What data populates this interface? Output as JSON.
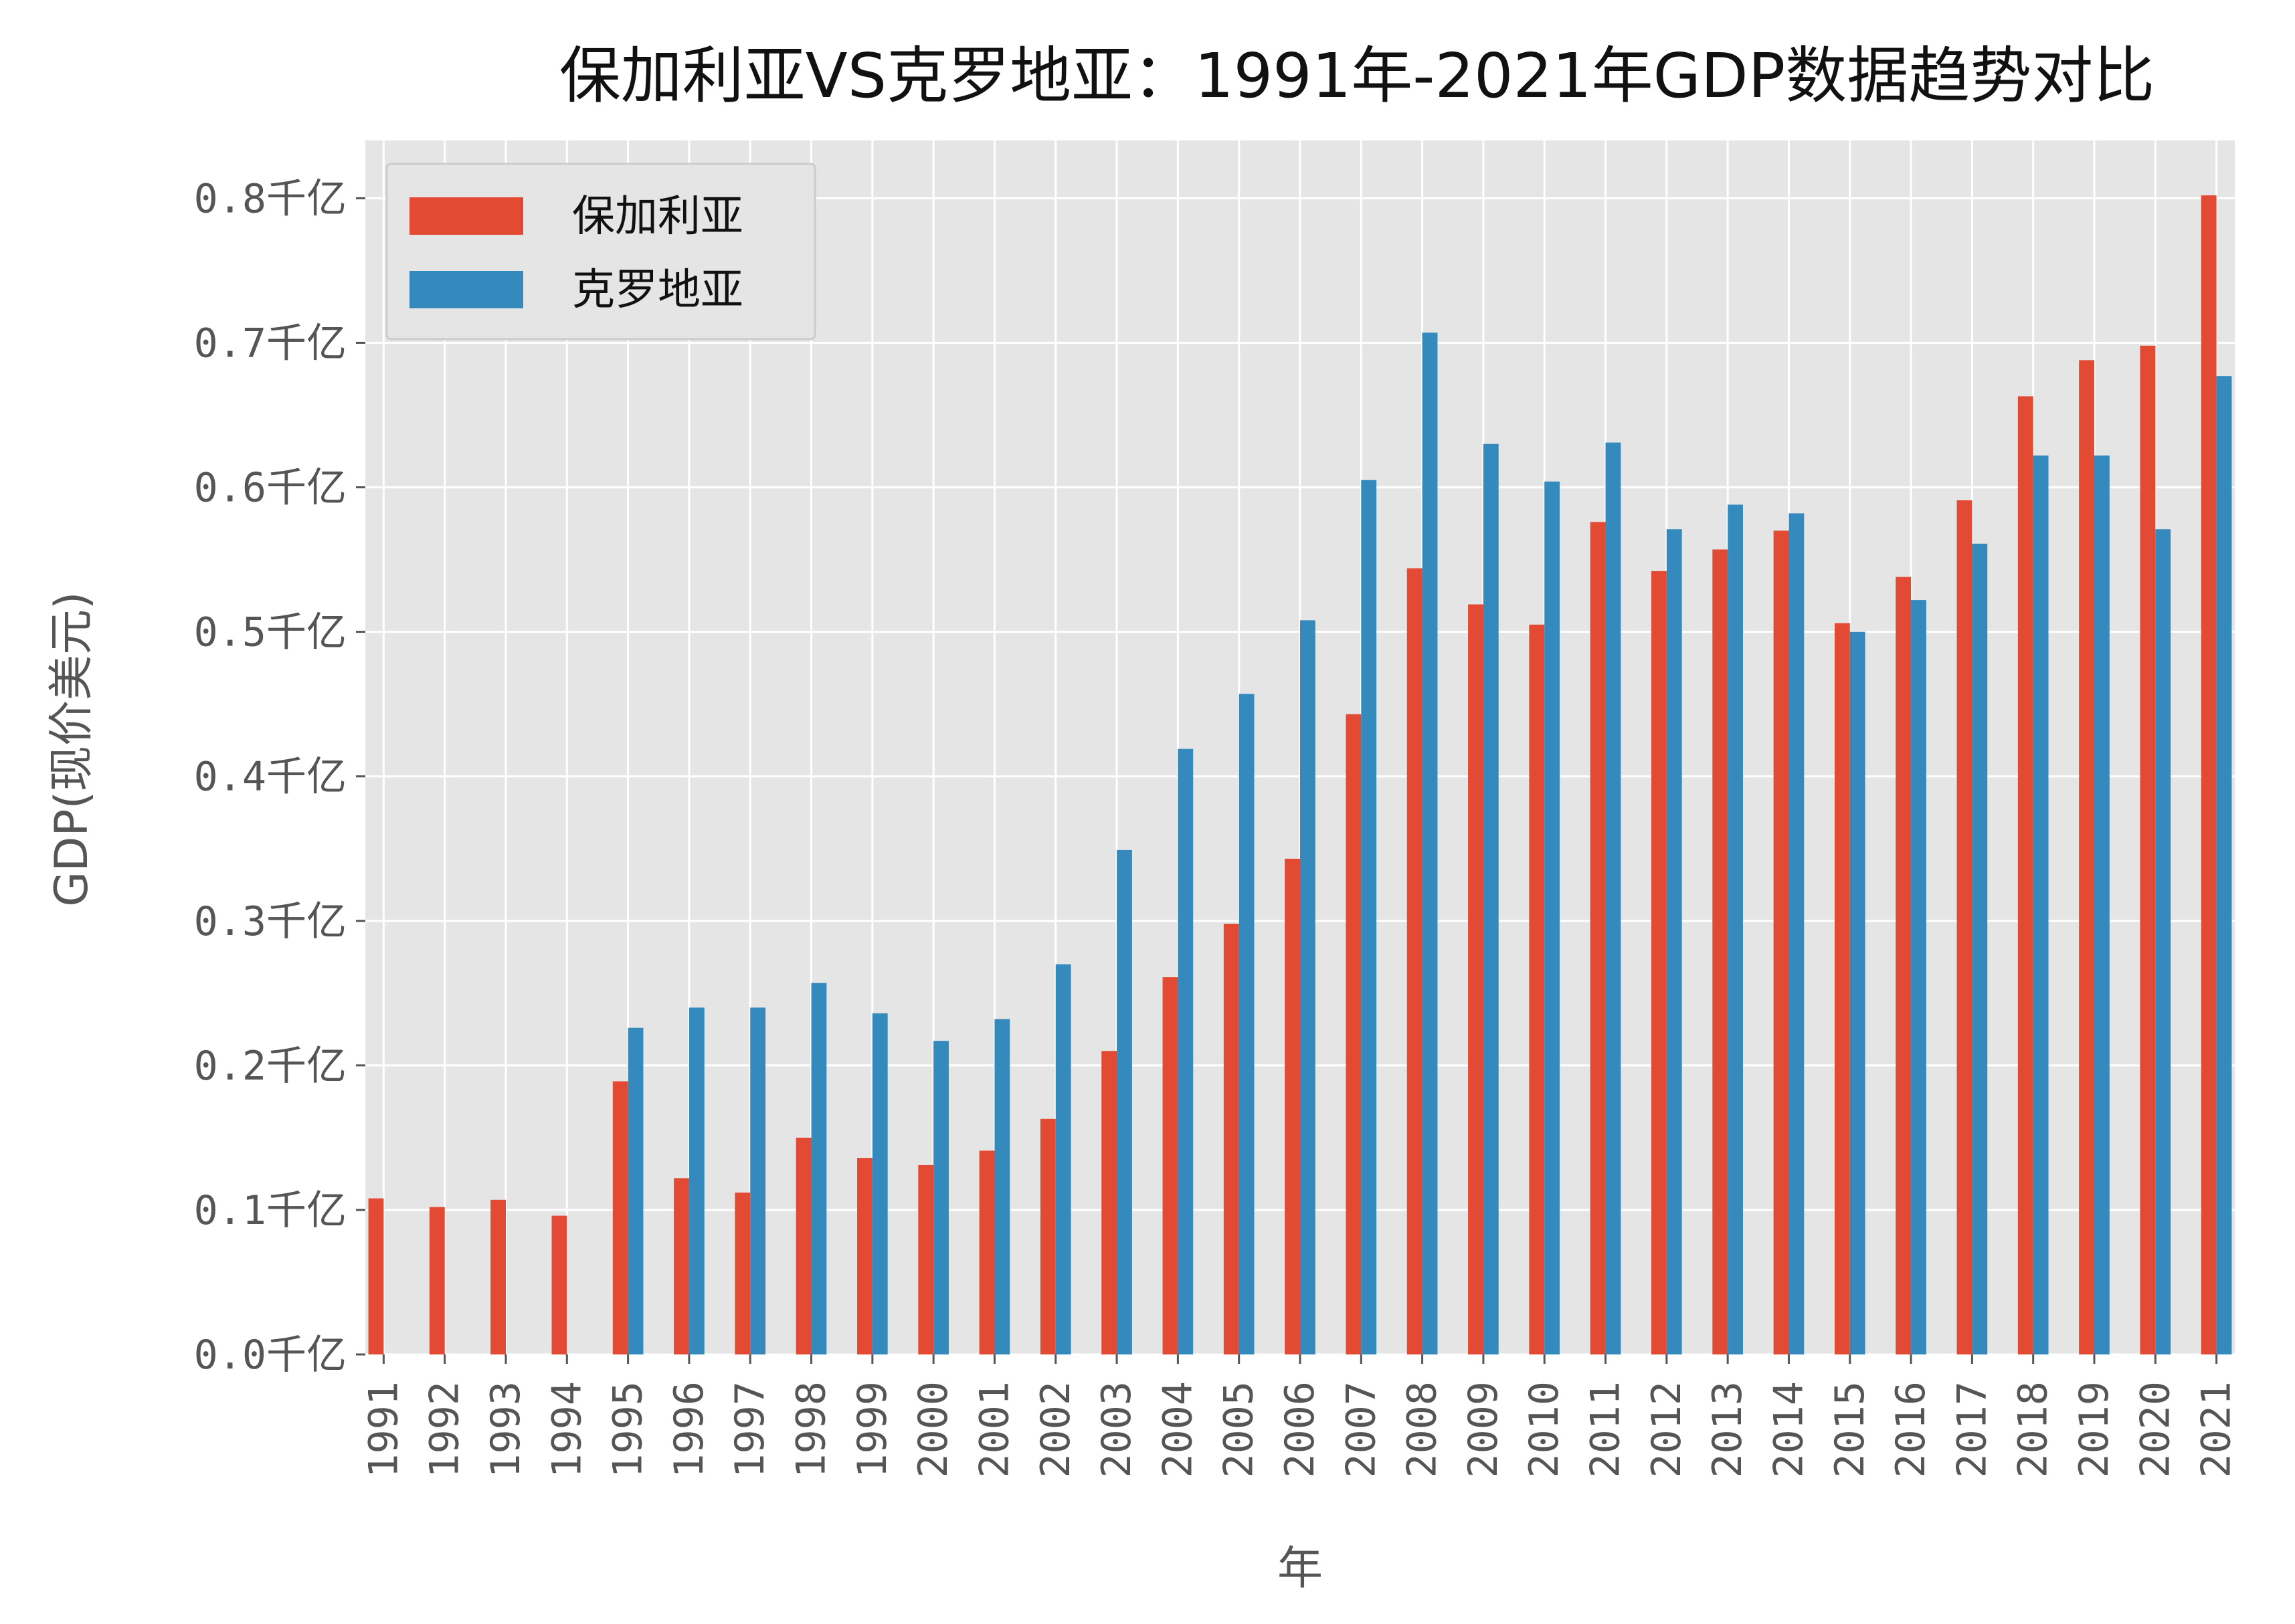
{
  "chart_data": {
    "type": "bar",
    "title": "保加利亚VS克罗地亚：1991年-2021年GDP数据趋势对比",
    "xlabel": "年",
    "ylabel": "GDP(现价美元)",
    "ylim": [
      0,
      0.84
    ],
    "yticks": [
      {
        "value": 0.0,
        "label": "0.0千亿"
      },
      {
        "value": 0.1,
        "label": "0.1千亿"
      },
      {
        "value": 0.2,
        "label": "0.2千亿"
      },
      {
        "value": 0.3,
        "label": "0.3千亿"
      },
      {
        "value": 0.4,
        "label": "0.4千亿"
      },
      {
        "value": 0.5,
        "label": "0.5千亿"
      },
      {
        "value": 0.6,
        "label": "0.6千亿"
      },
      {
        "value": 0.7,
        "label": "0.7千亿"
      },
      {
        "value": 0.8,
        "label": "0.8千亿"
      }
    ],
    "categories": [
      "1991",
      "1992",
      "1993",
      "1994",
      "1995",
      "1996",
      "1997",
      "1998",
      "1999",
      "2000",
      "2001",
      "2002",
      "2003",
      "2004",
      "2005",
      "2006",
      "2007",
      "2008",
      "2009",
      "2010",
      "2011",
      "2012",
      "2013",
      "2014",
      "2015",
      "2016",
      "2017",
      "2018",
      "2019",
      "2020",
      "2021"
    ],
    "grid": true,
    "legend_position": "top-left",
    "series": [
      {
        "name": "保加利亚",
        "color": "#E24A33",
        "values": [
          0.108,
          0.102,
          0.107,
          0.096,
          0.189,
          0.122,
          0.112,
          0.15,
          0.136,
          0.131,
          0.141,
          0.163,
          0.21,
          0.261,
          0.298,
          0.343,
          0.443,
          0.544,
          0.519,
          0.505,
          0.576,
          0.542,
          0.557,
          0.57,
          0.506,
          0.538,
          0.591,
          0.663,
          0.688,
          0.698,
          0.802
        ]
      },
      {
        "name": "克罗地亚",
        "color": "#348ABD",
        "values": [
          0,
          0,
          0,
          0,
          0.226,
          0.24,
          0.24,
          0.257,
          0.236,
          0.217,
          0.232,
          0.27,
          0.349,
          0.419,
          0.457,
          0.508,
          0.605,
          0.707,
          0.63,
          0.604,
          0.631,
          0.571,
          0.588,
          0.582,
          0.5,
          0.522,
          0.561,
          0.622,
          0.622,
          0.571,
          0.677
        ]
      }
    ]
  }
}
